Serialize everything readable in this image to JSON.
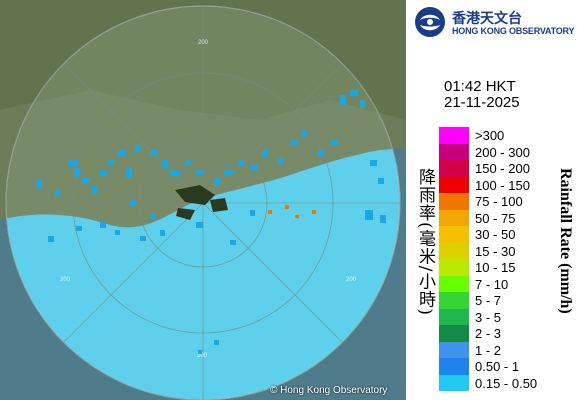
{
  "map": {
    "range_ring_labels": [
      "200",
      "200",
      "200",
      "200"
    ],
    "copyright": "© Hong Kong Observatory",
    "colors": {
      "land": "#6b7d58",
      "sea_outside": "#4e7c8a",
      "radar_coverage": "#5fd0ec",
      "echo": "#1aa7e6"
    }
  },
  "logo": {
    "chinese": "香港天文台",
    "english": "HONG KONG OBSERVATORY",
    "icon": "hko-logo-icon"
  },
  "timestamp": {
    "time": "01:42 HKT",
    "date": "21-11-2025"
  },
  "legend": {
    "title_zh": "降雨率(毫米/小時)",
    "title_en": "Rainfall Rate (mm/h)",
    "items": [
      {
        "label": ">300",
        "color": "#ff00ff"
      },
      {
        "label": "200 - 300",
        "color": "#c8007e"
      },
      {
        "label": "150 - 200",
        "color": "#d6004a"
      },
      {
        "label": "100 - 150",
        "color": "#ee0000"
      },
      {
        "label": "75 - 100",
        "color": "#f07600"
      },
      {
        "label": "50 - 75",
        "color": "#f2a600"
      },
      {
        "label": "30 - 50",
        "color": "#f5c000"
      },
      {
        "label": "15 - 30",
        "color": "#dfd000"
      },
      {
        "label": "10 - 15",
        "color": "#b8ea00"
      },
      {
        "label": "7 - 10",
        "color": "#66ff00"
      },
      {
        "label": "5 - 7",
        "color": "#33d633"
      },
      {
        "label": "3 - 5",
        "color": "#1fb84f"
      },
      {
        "label": "2 - 3",
        "color": "#148a48"
      },
      {
        "label": "1 - 2",
        "color": "#3f93ef"
      },
      {
        "label": "0.50 - 1",
        "color": "#1c84ec"
      },
      {
        "label": "0.15 - 0.50",
        "color": "#20c8f2"
      }
    ]
  }
}
